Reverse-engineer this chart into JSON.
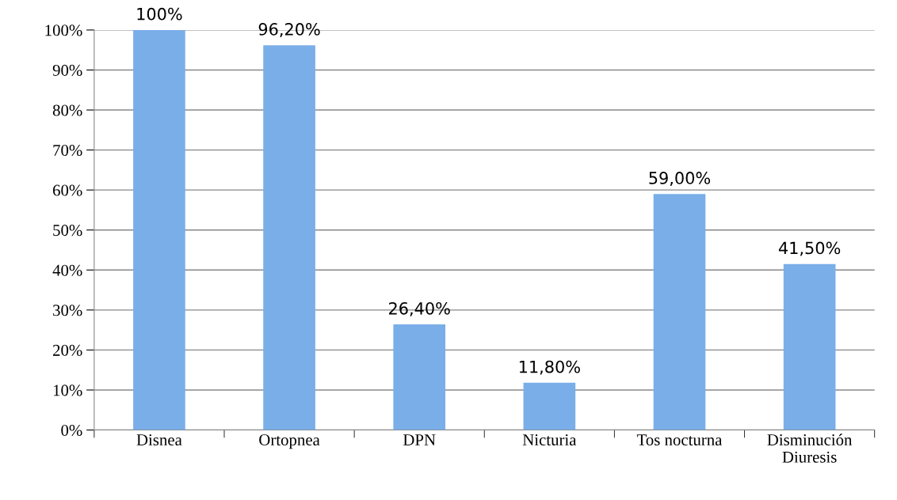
{
  "chart_data": {
    "type": "bar",
    "categories": [
      "Disnea",
      "Ortopnea",
      "DPN",
      "Nicturia",
      "Tos nocturna",
      "Disminución\nDiuresis"
    ],
    "values": [
      100,
      96.2,
      26.4,
      11.8,
      59,
      41.5
    ],
    "value_labels": [
      "100%",
      "96,20%",
      "26,40%",
      "11,80%",
      "59,00%",
      "41,50%"
    ],
    "color": "#7aaee8",
    "ylim": [
      0,
      100
    ],
    "yticks": [
      {
        "value": 0,
        "label": "0%"
      },
      {
        "value": 10,
        "label": "10%"
      },
      {
        "value": 20,
        "label": "20%"
      },
      {
        "value": 30,
        "label": "30%"
      },
      {
        "value": 40,
        "label": "40%"
      },
      {
        "value": 50,
        "label": "50%"
      },
      {
        "value": 60,
        "label": "60%"
      },
      {
        "value": 70,
        "label": "70%"
      },
      {
        "value": 80,
        "label": "80%"
      },
      {
        "value": 90,
        "label": "90%"
      },
      {
        "value": 100,
        "label": "100%"
      }
    ],
    "grid": "y",
    "legend": false
  }
}
